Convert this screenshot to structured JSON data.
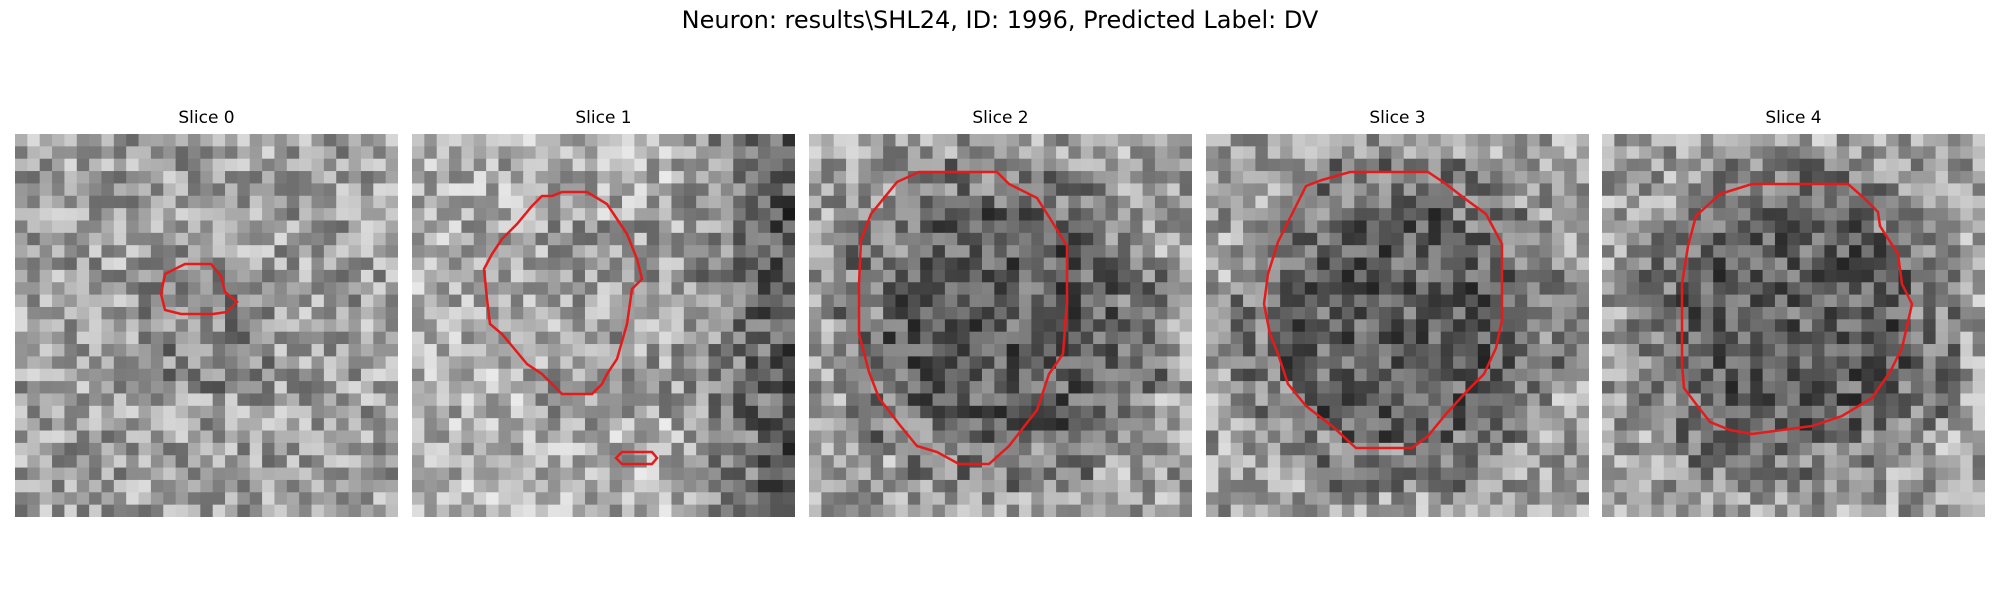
{
  "figure": {
    "title": "Neuron: results\\SHL24, ID: 1996, Predicted Label: DV"
  },
  "panels": [
    {
      "title": "Slice 0",
      "tone": "bright-noise",
      "contours": 1
    },
    {
      "title": "Slice 1",
      "tone": "dark-right-band",
      "contours": 2
    },
    {
      "title": "Slice 2",
      "tone": "dark-center",
      "contours": 1
    },
    {
      "title": "Slice 3",
      "tone": "dark-center",
      "contours": 1
    },
    {
      "title": "Slice 4",
      "tone": "dark-center",
      "contours": 1
    }
  ],
  "colors": {
    "contour": "#e51b1b",
    "background": "#ffffff"
  }
}
